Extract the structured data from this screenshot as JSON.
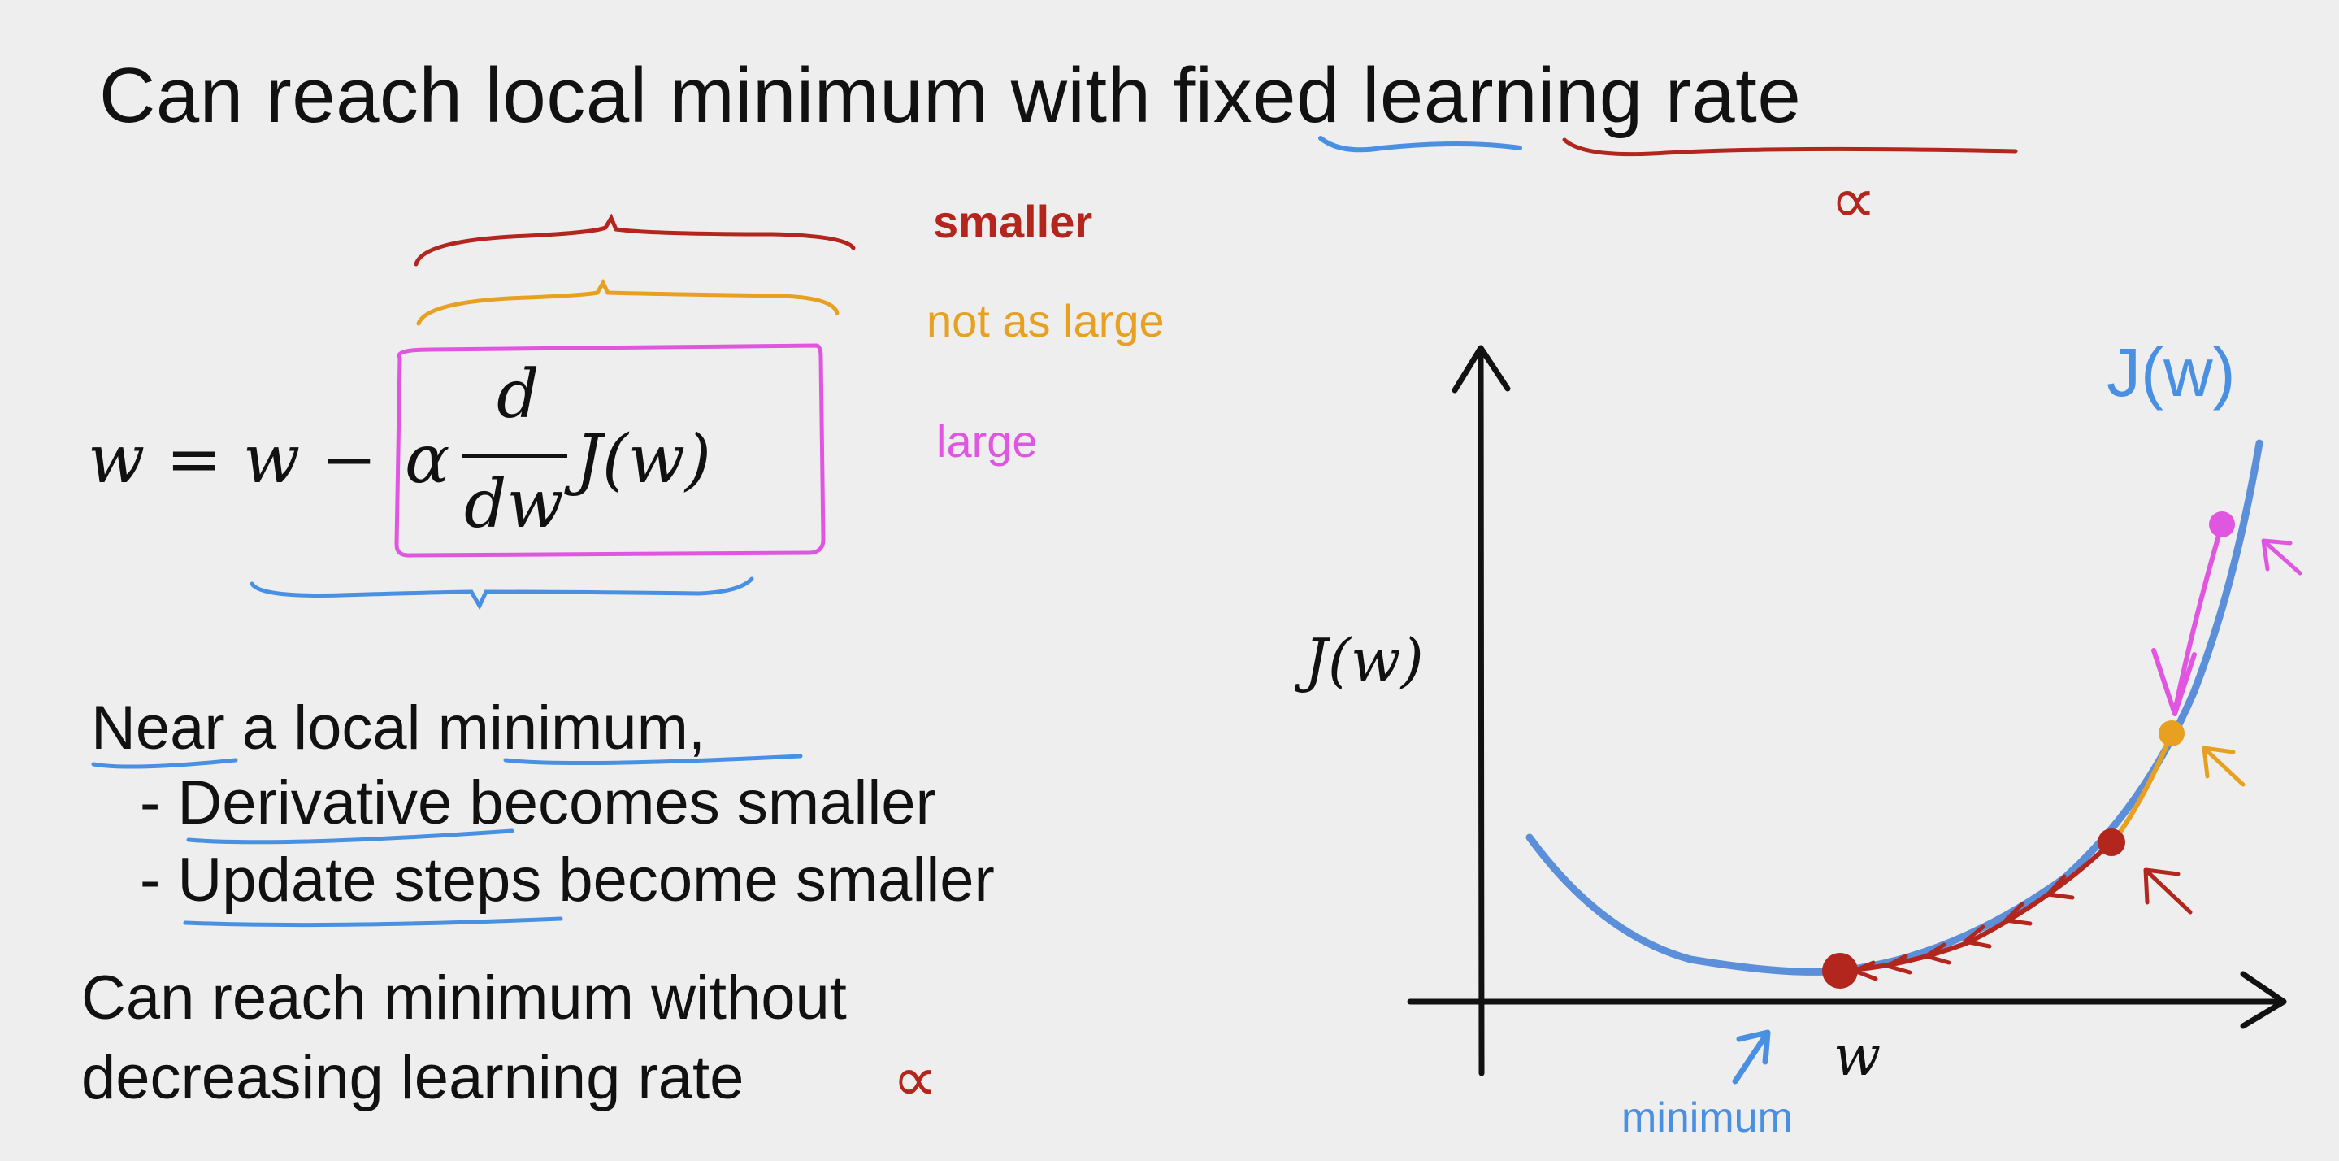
{
  "slide": {
    "title": "Can reach local minimum with fixed learning rate",
    "alpha_symbol": "∝",
    "formula": {
      "lhs": "w = w −",
      "alpha": "α",
      "numerator": "d",
      "denominator": "dw",
      "func": "J(w)"
    },
    "labels": {
      "smaller": "smaller",
      "not_as_large": "not as large",
      "large": "large"
    },
    "near_min": {
      "heading": "Near a local minimum,",
      "bullet1": "- Derivative becomes smaller",
      "bullet2": "- Update steps become smaller"
    },
    "conclusion": {
      "line1": "Can reach minimum without",
      "line2": "decreasing learning rate",
      "alpha": "∝"
    },
    "graph": {
      "curve_label": "J(w)",
      "y_axis_label": "J(w)",
      "x_axis_label": "w",
      "minimum_label": "minimum"
    },
    "colors": {
      "red": "#b3261e",
      "orange": "#e8a020",
      "magenta": "#e056e0",
      "blue": "#4a90e2",
      "curve": "#5b8fd9",
      "ink": "#111111"
    }
  }
}
